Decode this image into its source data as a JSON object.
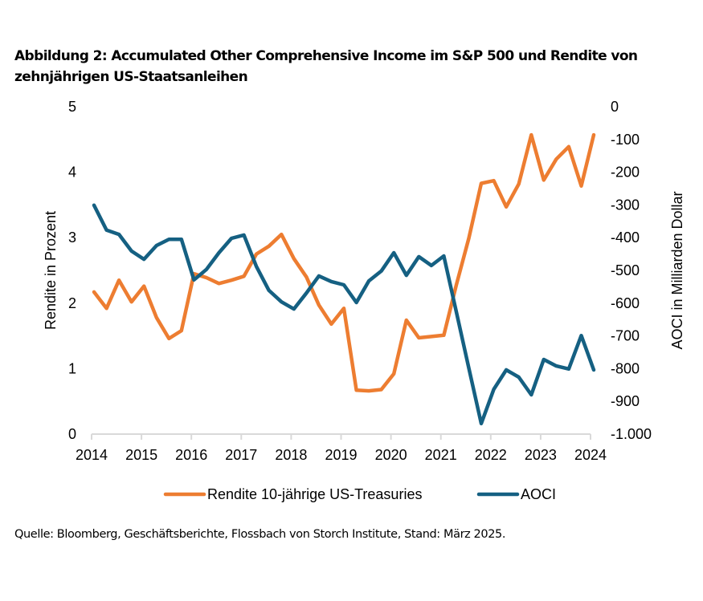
{
  "title": "Abbildung 2: Accumulated Other Comprehensive Income im S&P 500 und Rendite von zehnjährigen US-Staatsanleihen",
  "source": "Quelle: Bloomberg, Geschäftsberichte, Flossbach von Storch Institute, Stand: März 2025.",
  "chart_data": {
    "type": "line",
    "title": "Abbildung 2: Accumulated Other Comprehensive Income im S&P 500 und Rendite von zehnjährigen US-Staatsanleihen",
    "xlabel": "",
    "ylabel": "Rendite in Prozent",
    "y2label": "AOCI in Milliarden Dollar",
    "xlim": [
      2014,
      2024
    ],
    "ylim": [
      0,
      5
    ],
    "y2lim": [
      -1000,
      0
    ],
    "x_ticks": [
      "2014",
      "2015",
      "2016",
      "2017",
      "2018",
      "2019",
      "2020",
      "2021",
      "2022",
      "2023",
      "2024"
    ],
    "y_ticks": [
      "0",
      "1",
      "2",
      "3",
      "4",
      "5"
    ],
    "y2_ticks": [
      "0",
      "-100",
      "-200",
      "-300",
      "-400",
      "-500",
      "-600",
      "-700",
      "-800",
      "-900",
      "-1.000"
    ],
    "grid": false,
    "legend_position": "bottom",
    "x": [
      "2014Q1",
      "2014Q2",
      "2014Q3",
      "2014Q4",
      "2015Q1",
      "2015Q2",
      "2015Q3",
      "2015Q4",
      "2016Q1",
      "2016Q2",
      "2016Q3",
      "2016Q4",
      "2017Q1",
      "2017Q2",
      "2017Q3",
      "2017Q4",
      "2018Q1",
      "2018Q2",
      "2018Q3",
      "2018Q4",
      "2019Q1",
      "2019Q2",
      "2019Q3",
      "2019Q4",
      "2020Q1",
      "2020Q2",
      "2020Q3",
      "2020Q4",
      "2021Q1",
      "2021Q2",
      "2021Q3",
      "2021Q4",
      "2022Q1",
      "2022Q2",
      "2022Q3",
      "2022Q4",
      "2023Q1",
      "2023Q2",
      "2023Q3",
      "2023Q4",
      "2024Q1"
    ],
    "series": [
      {
        "name": "Rendite 10-jährige US-Treasuries",
        "axis": "left",
        "color": "#ED7D31",
        "values": [
          2.17,
          1.92,
          2.35,
          2.02,
          2.26,
          1.78,
          1.46,
          1.58,
          2.45,
          2.39,
          2.3,
          2.35,
          2.41,
          2.75,
          2.87,
          3.05,
          2.68,
          2.4,
          1.97,
          1.68,
          1.92,
          0.67,
          0.66,
          0.68,
          0.92,
          1.74,
          1.47,
          1.49,
          1.51,
          2.28,
          2.99,
          3.83,
          3.87,
          3.47,
          3.82,
          4.57,
          3.88,
          4.2,
          4.39,
          3.79,
          4.57
        ]
      },
      {
        "name": "AOCI",
        "axis": "right",
        "color": "#156082",
        "values": [
          -301,
          -377,
          -390,
          -441,
          -466,
          -424,
          -405,
          -405,
          -529,
          -497,
          -446,
          -402,
          -392,
          -488,
          -561,
          -596,
          -618,
          -569,
          -517,
          -534,
          -544,
          -598,
          -532,
          -502,
          -446,
          -515,
          -458,
          -485,
          -456,
          -627,
          -798,
          -968,
          -863,
          -804,
          -826,
          -880,
          -772,
          -792,
          -801,
          -699,
          -804
        ]
      }
    ]
  }
}
